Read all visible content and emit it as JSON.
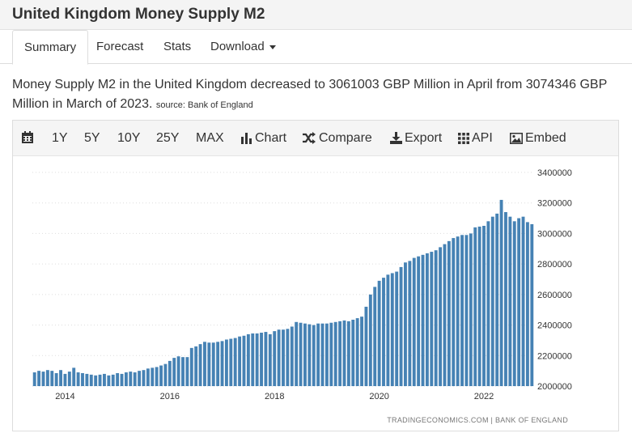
{
  "header": {
    "title": "United Kingdom Money Supply M2"
  },
  "tabs": [
    {
      "label": "Summary"
    },
    {
      "label": "Forecast"
    },
    {
      "label": "Stats"
    },
    {
      "label": "Download"
    }
  ],
  "description": {
    "text": "Money Supply M2 in the United Kingdom decreased to 3061003 GBP Million in April from 3074346 GBP Million in March of 2023.",
    "source": "source: Bank of England"
  },
  "toolbar": {
    "calendar_icon": "calendar-icon",
    "ranges": [
      "1Y",
      "5Y",
      "10Y",
      "25Y",
      "MAX"
    ],
    "chart_label": "Chart",
    "compare_label": "Compare",
    "export_label": "Export",
    "api_label": "API",
    "embed_label": "Embed"
  },
  "colors": {
    "bar": "#4682b4",
    "grid": "#dddddd"
  },
  "chart_data": {
    "type": "bar",
    "title": "",
    "xlabel": "",
    "ylabel": "",
    "x_range": [
      "2013-06",
      "2023-04"
    ],
    "ylim": [
      2000000,
      3400000
    ],
    "y_ticks": [
      2000000,
      2200000,
      2400000,
      2600000,
      2800000,
      3000000,
      3200000,
      3400000
    ],
    "x_ticks": [
      "2014",
      "2016",
      "2018",
      "2020",
      "2022"
    ],
    "grid": "horizontal dotted",
    "credit": "TRADINGECONOMICS.COM  |  BANK OF ENGLAND",
    "series": [
      {
        "values": [
          2090000,
          2100000,
          2095000,
          2105000,
          2100000,
          2085000,
          2105000,
          2080000,
          2095000,
          2120000,
          2090000,
          2085000,
          2080000,
          2075000,
          2070000,
          2075000,
          2080000,
          2070000,
          2075000,
          2085000,
          2080000,
          2090000,
          2095000,
          2090000,
          2100000,
          2105000,
          2115000,
          2120000,
          2125000,
          2135000,
          2145000,
          2165000,
          2185000,
          2195000,
          2190000,
          2190000,
          2250000,
          2260000,
          2275000,
          2290000,
          2285000,
          2285000,
          2290000,
          2295000,
          2305000,
          2310000,
          2315000,
          2325000,
          2330000,
          2340000,
          2345000,
          2345000,
          2350000,
          2355000,
          2340000,
          2360000,
          2370000,
          2370000,
          2375000,
          2390000,
          2420000,
          2415000,
          2410000,
          2405000,
          2400000,
          2410000,
          2410000,
          2410000,
          2415000,
          2420000,
          2425000,
          2430000,
          2425000,
          2435000,
          2445000,
          2455000,
          2520000,
          2600000,
          2650000,
          2690000,
          2710000,
          2730000,
          2740000,
          2750000,
          2780000,
          2810000,
          2820000,
          2840000,
          2850000,
          2860000,
          2870000,
          2880000,
          2890000,
          2910000,
          2930000,
          2950000,
          2970000,
          2980000,
          2990000,
          2990000,
          3000000,
          3040000,
          3045000,
          3050000,
          3080000,
          3110000,
          3130000,
          3220000,
          3140000,
          3110000,
          3080000,
          3100000,
          3110000,
          3074346,
          3061003
        ]
      }
    ]
  }
}
